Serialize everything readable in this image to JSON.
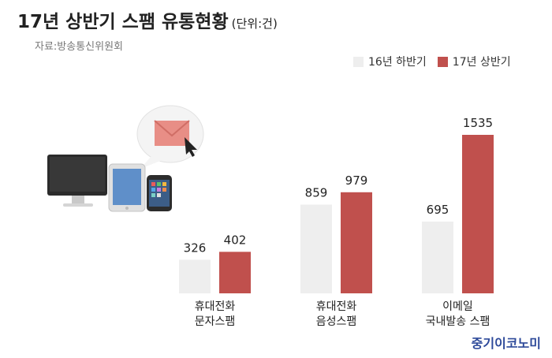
{
  "title": "17년 상반기 스팸 유통현황",
  "unit": "(단위:건)",
  "source": "자료:방송통신위원회",
  "brand": "중기이코노미",
  "colors": {
    "series_16": "#eeeeee",
    "series_17": "#c0504d"
  },
  "chart_data": {
    "type": "bar",
    "categories": [
      [
        "휴대전화",
        "문자스팸"
      ],
      [
        "휴대전화",
        "음성스팸"
      ],
      [
        "이메일",
        "국내발송 스팸"
      ]
    ],
    "series": [
      {
        "name": "16년 하반기",
        "values": [
          326,
          859,
          695
        ]
      },
      {
        "name": "17년 상반기",
        "values": [
          402,
          979,
          1535
        ]
      }
    ],
    "title": "17년 상반기 스팸 유통현황",
    "xlabel": "",
    "ylabel": "",
    "ylim": [
      0,
      1535
    ],
    "grid": false,
    "legend": "top-right"
  }
}
